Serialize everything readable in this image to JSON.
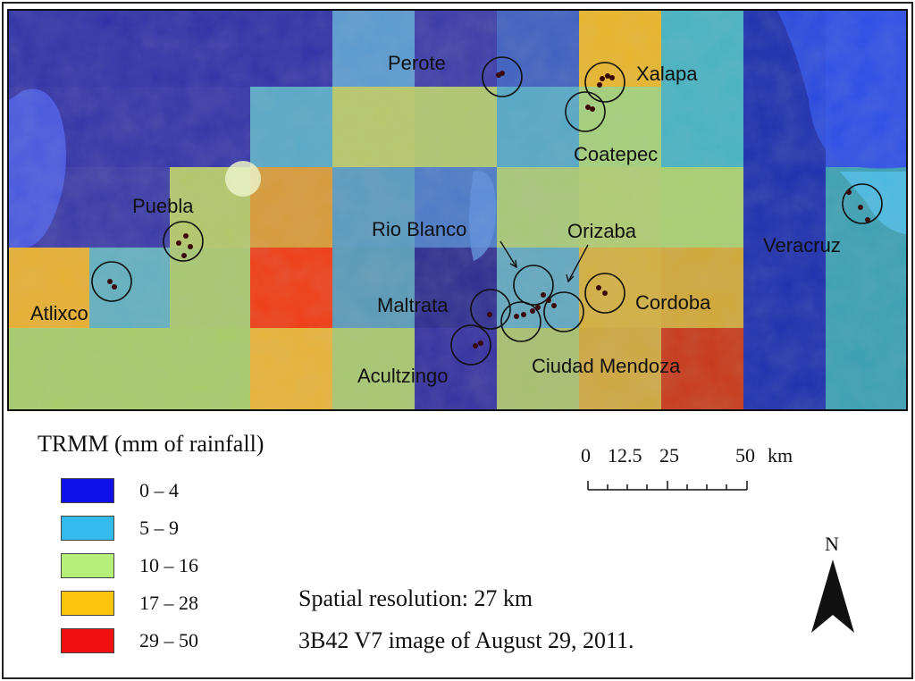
{
  "map": {
    "cities": {
      "perote": "Perote",
      "xalapa": "Xalapa",
      "coatepec": "Coatepec",
      "puebla": "Puebla",
      "rio_blanco": "Rio Blanco",
      "orizaba": "Orizaba",
      "veracruz": "Veracruz",
      "maltrata": "Maltrata",
      "cordoba": "Cordoba",
      "atlixco": "Atlixco",
      "acultzingo": "Acultzingo",
      "ciudad_mendoza": "Ciudad Mendoza"
    }
  },
  "legend": {
    "title": "TRMM  (mm of rainfall)",
    "classes": [
      {
        "label": "0 – 4",
        "color": "#1010e8"
      },
      {
        "label": "5 – 9",
        "color": "#33bbee"
      },
      {
        "label": "10 – 16",
        "color": "#b6f07a"
      },
      {
        "label": "17 – 28",
        "color": "#fcc40c"
      },
      {
        "label": "29 – 50",
        "color": "#f01010"
      }
    ]
  },
  "scale_bar": {
    "labels": [
      "0",
      "12.5",
      "25",
      "50"
    ],
    "unit": "km"
  },
  "north_label": "N",
  "notes": {
    "resolution": "Spatial resolution: 27 km",
    "image": "3B42 V7 image of August 29, 2011."
  }
}
